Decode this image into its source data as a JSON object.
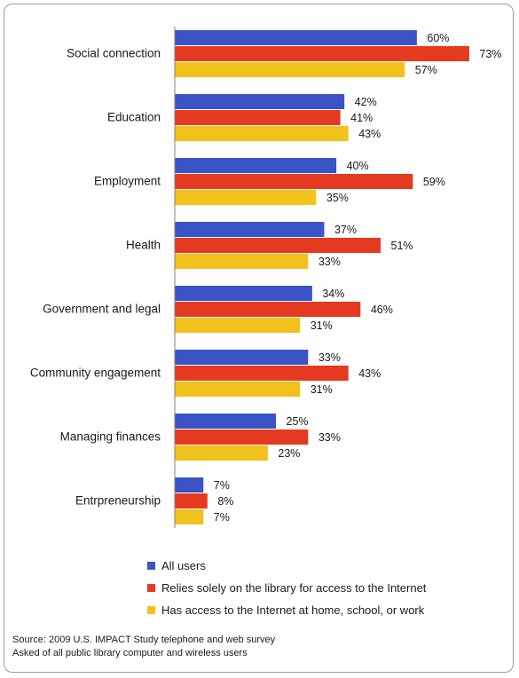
{
  "chart_data": {
    "type": "bar",
    "orientation": "horizontal",
    "categories": [
      "Social connection",
      "Education",
      "Employment",
      "Health",
      "Government and legal",
      "Community engagement",
      "Managing finances",
      "Entrpreneurship"
    ],
    "series": [
      {
        "name": "All users",
        "color": "#3a53c6",
        "values": [
          60,
          42,
          40,
          37,
          34,
          33,
          25,
          7
        ]
      },
      {
        "name": "Relies solely on the library for access to the Internet",
        "color": "#e53a1f",
        "values": [
          73,
          41,
          59,
          51,
          46,
          43,
          33,
          8
        ]
      },
      {
        "name": "Has access to the Internet at home, school, or work",
        "color": "#f2c21c",
        "values": [
          57,
          43,
          35,
          33,
          31,
          31,
          23,
          7
        ]
      }
    ],
    "value_suffix": "%",
    "xlim": [
      0,
      100
    ],
    "grid": false,
    "legend_position": "bottom",
    "title": "",
    "xlabel": "",
    "ylabel": ""
  },
  "source": {
    "line1": "Source: 2009 U.S. IMPACT Study telephone and web survey",
    "line2": "Asked of  all public library computer and wireless users"
  }
}
